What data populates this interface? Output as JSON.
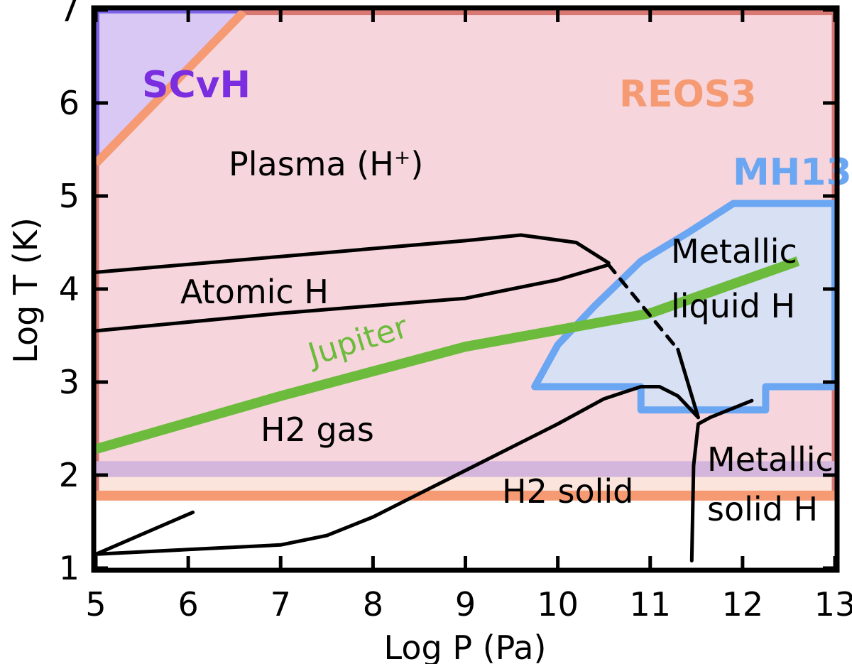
{
  "chart_data": {
    "type": "phase-diagram",
    "xlabel": "Log P (Pa)",
    "ylabel": "Log T (K)",
    "xlim": [
      5,
      13
    ],
    "ylim": [
      1,
      7
    ],
    "xticks": [
      "5",
      "6",
      "7",
      "8",
      "9",
      "10",
      "11",
      "12",
      "13"
    ],
    "yticks": [
      "1",
      "2",
      "3",
      "4",
      "5",
      "6",
      "7"
    ],
    "grid": false,
    "colors": {
      "scvh": "#7b2ee0",
      "scvh_fill": "#d9c8f4",
      "scvh_band": "#d4b5dc",
      "reos3": "#f59a72",
      "reos3_fill": "#f6d6dc",
      "reos3_lowband": "#fbe4dc",
      "reos3_border": "#d97872",
      "mh13": "#6aa6f2",
      "mh13_fill": "#d8e0f4",
      "jupiter": "#6cbb3c",
      "phase": "#000000"
    },
    "eos_regions": [
      {
        "name": "SCvH",
        "polygon": [
          [
            5,
            1.98
          ],
          [
            13,
            1.98
          ],
          [
            13,
            2.15
          ],
          [
            6.6,
            7
          ],
          [
            5,
            7
          ]
        ]
      },
      {
        "name": "REOS3",
        "polygon": [
          [
            5,
            1.75
          ],
          [
            13,
            1.75
          ],
          [
            13,
            7
          ],
          [
            6.6,
            7
          ],
          [
            5,
            5.35
          ]
        ]
      },
      {
        "name": "MH13",
        "polygon": [
          [
            9.75,
            2.95
          ],
          [
            10.0,
            3.4
          ],
          [
            10.4,
            3.82
          ],
          [
            10.9,
            4.3
          ],
          [
            11.4,
            4.6
          ],
          [
            11.9,
            4.92
          ],
          [
            13,
            4.92
          ],
          [
            13,
            2.95
          ],
          [
            12.25,
            2.95
          ],
          [
            12.25,
            2.7
          ],
          [
            10.9,
            2.7
          ],
          [
            10.9,
            2.95
          ]
        ]
      }
    ],
    "labels": {
      "scvh": "SCvH",
      "reos3": "REOS3",
      "mh13": "MH13",
      "plasma": "Plasma (H",
      "plasma_sup": "+",
      "plasma_close": ")",
      "atomic": "Atomic H",
      "h2gas": "H2 gas",
      "h2solid": "H2 solid",
      "metallic_liquid": [
        "Metallic",
        "liquid H"
      ],
      "metallic_solid": [
        "Metallic",
        "solid H"
      ],
      "jupiter": "Jupiter"
    },
    "series": [
      {
        "name": "Jupiter",
        "x": [
          5.0,
          7.0,
          9.0,
          11.0,
          11.8,
          12.6
        ],
        "y": [
          2.28,
          2.85,
          3.38,
          3.74,
          4.02,
          4.3
        ]
      },
      {
        "x": [
          5.0,
          7.0,
          9.0,
          9.6,
          10.2,
          10.55
        ],
        "y": [
          4.18,
          4.35,
          4.52,
          4.58,
          4.5,
          4.28
        ]
      },
      {
        "x": [
          5.0,
          7.0,
          9.0,
          10.0,
          10.55
        ],
        "y": [
          3.55,
          3.74,
          3.9,
          4.1,
          4.26
        ]
      },
      {
        "x": [
          10.55,
          11.3
        ],
        "y": [
          4.26,
          3.35
        ]
      },
      {
        "x": [
          11.3,
          11.52
        ],
        "y": [
          3.35,
          2.62
        ]
      },
      {
        "x": [
          11.45,
          11.47,
          11.52,
          11.65,
          12.1
        ],
        "y": [
          1.08,
          2.1,
          2.55,
          2.62,
          2.8
        ]
      },
      {
        "x": [
          5.0,
          6.0,
          7.0,
          7.5,
          8.0,
          8.5,
          9.0,
          9.5,
          10.0,
          10.5,
          10.9,
          11.1,
          11.3,
          11.52
        ],
        "y": [
          1.15,
          1.2,
          1.25,
          1.35,
          1.55,
          1.8,
          2.05,
          2.3,
          2.55,
          2.82,
          2.95,
          2.95,
          2.85,
          2.62
        ]
      },
      {
        "x": [
          5.0,
          6.05
        ],
        "y": [
          1.15,
          1.6
        ]
      }
    ]
  }
}
